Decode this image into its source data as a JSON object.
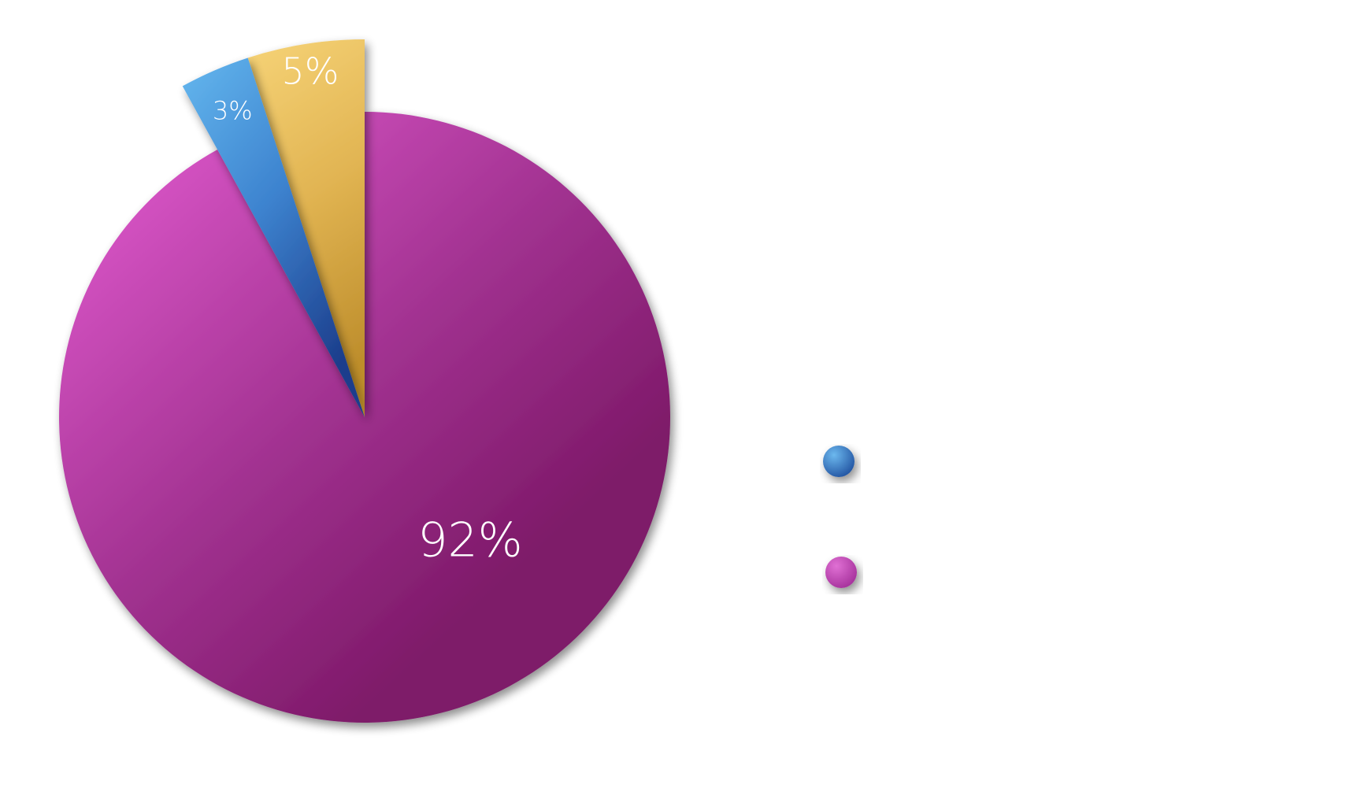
{
  "chart_data": {
    "type": "pie",
    "title": "",
    "slices": [
      {
        "label": "5%",
        "value": 5,
        "color": "#F2C55C",
        "exploded": true
      },
      {
        "label": "3%",
        "value": 3,
        "color": "#4A90D9",
        "exploded": true
      },
      {
        "label": "92%",
        "value": 92,
        "color": "#A6308F",
        "exploded": false
      }
    ],
    "legend": {
      "placement": "right",
      "items": [
        {
          "name": "",
          "color": "#2F6DC0"
        },
        {
          "name": "",
          "color": "#C440B4"
        }
      ]
    }
  }
}
